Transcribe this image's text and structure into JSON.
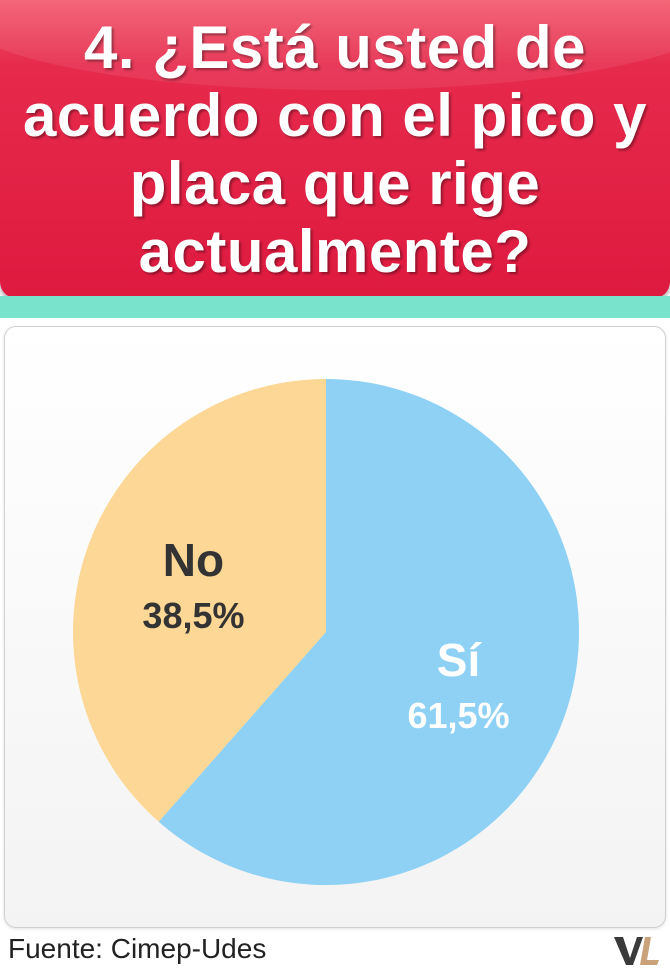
{
  "header": {
    "title": "4. ¿Está usted de acuerdo con el pico y placa que rige actualmente?",
    "background_color": "#de1a3f",
    "band_color": "#79e3cc"
  },
  "chart_data": {
    "type": "pie",
    "slices": [
      {
        "label": "Sí",
        "value": 61.5,
        "display_value": "61,5%",
        "color": "#8ed1f5",
        "text_color": "#ffffff"
      },
      {
        "label": "No",
        "value": 38.5,
        "display_value": "38,5%",
        "color": "#fcd795",
        "text_color": "#333333"
      }
    ],
    "start_angle_deg": 0,
    "direction": "clockwise",
    "legend": "none"
  },
  "footer": {
    "source": "Fuente: Cimep-Udes",
    "logo_icon": "vl-logo-icon"
  }
}
